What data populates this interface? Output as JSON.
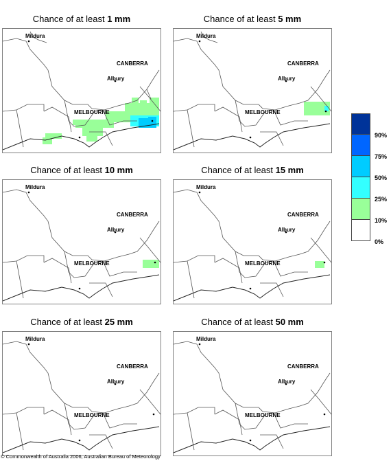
{
  "panels": [
    {
      "title_prefix": "Chance of at least",
      "threshold": "1 mm"
    },
    {
      "title_prefix": "Chance of at least",
      "threshold": "5 mm"
    },
    {
      "title_prefix": "Chance of at least",
      "threshold": "10 mm"
    },
    {
      "title_prefix": "Chance of at least",
      "threshold": "15 mm"
    },
    {
      "title_prefix": "Chance of at least",
      "threshold": "25 mm"
    },
    {
      "title_prefix": "Chance of at least",
      "threshold": "50 mm"
    }
  ],
  "cities": {
    "mildura": "Mildura",
    "canberra": "CANBERRA",
    "albury": "Albury",
    "melbourne": "MELBOURNE"
  },
  "legend": {
    "labels": [
      "90%",
      "75%",
      "50%",
      "25%",
      "10%",
      "0%"
    ],
    "colors": [
      "#003399",
      "#0066ff",
      "#00ccff",
      "#33ffff",
      "#99ff99",
      "#ffffff"
    ]
  },
  "copyright": "© Commonwealth of Australia 2006, Australian Bureau of Meteorology"
}
